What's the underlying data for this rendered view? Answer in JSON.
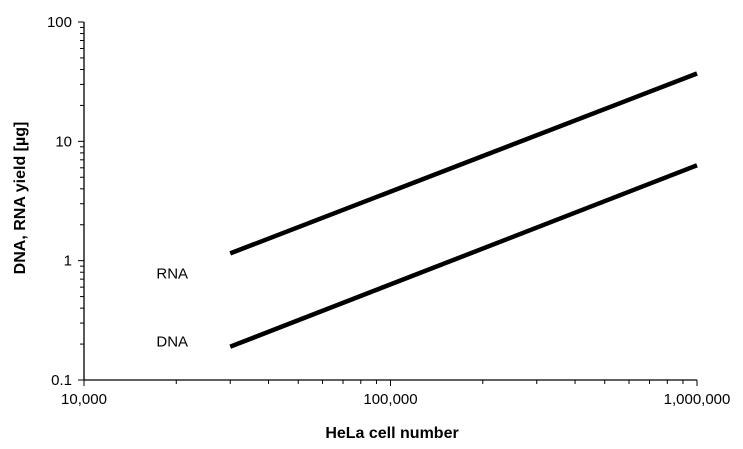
{
  "chart_data": {
    "type": "line",
    "xlabel": "HeLa cell number",
    "ylabel": "DNA, RNA yield [µg]",
    "xscale": "log",
    "yscale": "log",
    "xlim": [
      10000,
      1000000
    ],
    "ylim": [
      0.1,
      100
    ],
    "x_tick_labels": [
      "10,000",
      "100,000",
      "1,000,000"
    ],
    "y_tick_labels": [
      "0.1",
      "1",
      "10",
      "100"
    ],
    "grid": false,
    "line_color": "#000000",
    "series": [
      {
        "name": "RNA",
        "x": [
          30000,
          1000000
        ],
        "y": [
          1.15,
          37
        ]
      },
      {
        "name": "DNA",
        "x": [
          30000,
          1000000
        ],
        "y": [
          0.19,
          6.3
        ]
      }
    ]
  }
}
